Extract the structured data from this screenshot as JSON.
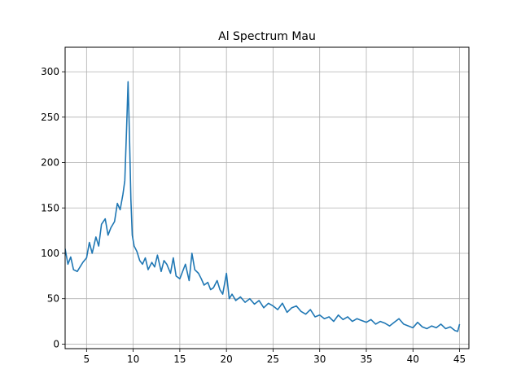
{
  "chart_data": {
    "type": "line",
    "title": "Al Spectrum Mau",
    "xlabel": "",
    "ylabel": "",
    "xlim": [
      2.7,
      46.0
    ],
    "ylim": [
      -5,
      327
    ],
    "xticks": [
      5,
      10,
      15,
      20,
      25,
      30,
      35,
      40,
      45
    ],
    "yticks": [
      0,
      50,
      100,
      150,
      200,
      250,
      300
    ],
    "grid": true,
    "series_color": "#1f77b4",
    "series": [
      {
        "x": [
          2.7,
          3.0,
          3.3,
          3.6,
          4.0,
          4.3,
          4.6,
          5.0,
          5.3,
          5.6,
          6.0,
          6.3,
          6.6,
          7.0,
          7.3,
          7.6,
          8.0,
          8.3,
          8.6,
          8.9,
          9.1,
          9.3,
          9.45,
          9.6,
          9.75,
          9.9,
          10.1,
          10.4,
          10.7,
          11.0,
          11.3,
          11.6,
          12.0,
          12.3,
          12.6,
          13.0,
          13.3,
          13.6,
          14.0,
          14.3,
          14.6,
          15.0,
          15.3,
          15.6,
          16.0,
          16.3,
          16.6,
          17.0,
          17.3,
          17.6,
          18.0,
          18.3,
          18.6,
          19.0,
          19.3,
          19.6,
          20.0,
          20.3,
          20.6,
          21.0,
          21.5,
          22.0,
          22.5,
          23.0,
          23.5,
          24.0,
          24.5,
          25.0,
          25.5,
          26.0,
          26.5,
          27.0,
          27.5,
          28.0,
          28.5,
          29.0,
          29.5,
          30.0,
          30.5,
          31.0,
          31.5,
          32.0,
          32.5,
          33.0,
          33.5,
          34.0,
          34.5,
          35.0,
          35.5,
          36.0,
          36.5,
          37.0,
          37.5,
          38.0,
          38.5,
          39.0,
          39.5,
          40.0,
          40.5,
          41.0,
          41.5,
          42.0,
          42.5,
          43.0,
          43.5,
          44.0,
          44.5,
          44.8,
          45.0
        ],
        "y": [
          105,
          88,
          96,
          82,
          80,
          85,
          90,
          95,
          112,
          100,
          118,
          108,
          132,
          138,
          120,
          128,
          135,
          155,
          148,
          165,
          180,
          240,
          289,
          230,
          160,
          120,
          108,
          102,
          92,
          88,
          95,
          82,
          90,
          85,
          98,
          80,
          92,
          88,
          78,
          95,
          75,
          72,
          80,
          88,
          70,
          100,
          82,
          78,
          72,
          65,
          68,
          60,
          62,
          70,
          60,
          55,
          78,
          50,
          55,
          48,
          52,
          46,
          50,
          44,
          48,
          40,
          45,
          42,
          38,
          45,
          35,
          40,
          42,
          36,
          33,
          38,
          30,
          32,
          28,
          30,
          25,
          32,
          27,
          30,
          25,
          28,
          26,
          24,
          27,
          22,
          25,
          23,
          20,
          24,
          28,
          22,
          20,
          18,
          24,
          19,
          17,
          20,
          18,
          22,
          17,
          19,
          15,
          14,
          22
        ]
      }
    ]
  }
}
